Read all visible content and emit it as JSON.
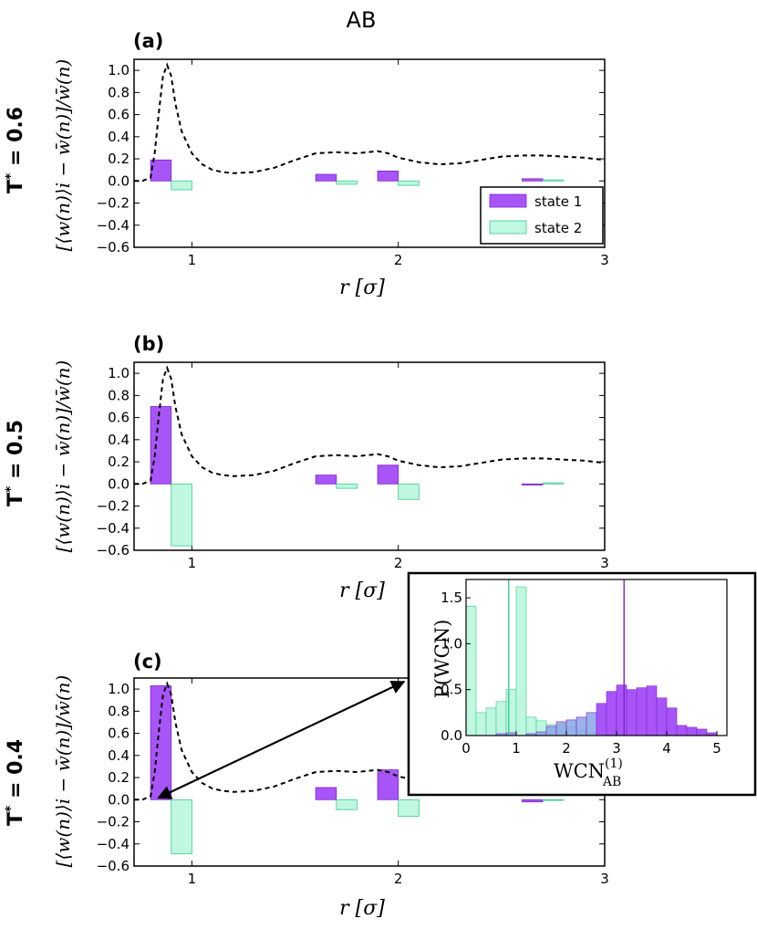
{
  "figure_title": "AB",
  "legend": {
    "state1": "state 1",
    "state2": "state 2"
  },
  "colors": {
    "state1": "#a855f7",
    "state1_edge": "#7e22ce",
    "state2": "#bff7e0",
    "state2_edge": "#3cc98e",
    "overlap": "#8aa6e6"
  },
  "panels": [
    {
      "letter": "(a)",
      "temp_label": "T* = 0.6",
      "temp_letter": "T",
      "temp_star": "*",
      "temp_value": " = 0.6",
      "ylabel": "[⟨w(n)⟩i − w̄(n)]/w̄(n)",
      "xlabel": "r [σ]",
      "show_legend": true
    },
    {
      "letter": "(b)",
      "temp_label": "T* = 0.5",
      "temp_letter": "T",
      "temp_star": "*",
      "temp_value": " = 0.5",
      "ylabel": "[⟨w(n)⟩i − w̄(n)]/w̄(n)",
      "xlabel": "r [σ]",
      "show_legend": false
    },
    {
      "letter": "(c)",
      "temp_label": "T* = 0.4",
      "temp_letter": "T",
      "temp_star": "*",
      "temp_value": " = 0.4",
      "ylabel": "[⟨w(n)⟩i − w̄(n)]/w̄(n)",
      "xlabel": "r [σ]",
      "show_legend": false
    }
  ],
  "inset": {
    "ylabel": "P(WCN)",
    "xlabel_main": "WCN",
    "xlabel_sup": "(1)",
    "xlabel_sub": "AB"
  },
  "chart_data": [
    {
      "type": "bar",
      "panel": "(a)",
      "title": "AB",
      "xlabel": "r [σ]",
      "ylabel": "[⟨w(n)⟩i − w̄(n)]/w̄(n)",
      "xlim": [
        0.72,
        3.0
      ],
      "ylim": [
        -0.6,
        1.1
      ],
      "xticks": [
        "1",
        "2",
        "3"
      ],
      "yticks": [
        "−0.6",
        "−0.4",
        "−0.2",
        "0.0",
        "0.2",
        "0.4",
        "0.6",
        "0.8",
        "1.0"
      ],
      "series": [
        {
          "name": "state 1",
          "bars": [
            {
              "x": 0.8,
              "v": 0.19
            },
            {
              "x": 1.6,
              "v": 0.06
            },
            {
              "x": 1.9,
              "v": 0.09
            },
            {
              "x": 2.6,
              "v": 0.02
            }
          ]
        },
        {
          "name": "state 2",
          "bars": [
            {
              "x": 0.9,
              "v": -0.08
            },
            {
              "x": 1.7,
              "v": -0.03
            },
            {
              "x": 2.0,
              "v": -0.04
            },
            {
              "x": 2.7,
              "v": 0.01
            }
          ]
        }
      ],
      "reference_curve": {
        "style": "dashed",
        "x": [
          0.72,
          0.76,
          0.8,
          0.82,
          0.84,
          0.86,
          0.88,
          0.9,
          0.92,
          0.95,
          1.0,
          1.05,
          1.1,
          1.15,
          1.2,
          1.3,
          1.4,
          1.5,
          1.6,
          1.7,
          1.8,
          1.9,
          1.95,
          2.0,
          2.1,
          2.2,
          2.3,
          2.4,
          2.5,
          2.6,
          2.7,
          2.8,
          2.9,
          3.0
        ],
        "y": [
          0.0,
          0.0,
          0.03,
          0.25,
          0.62,
          0.95,
          1.05,
          0.95,
          0.7,
          0.45,
          0.25,
          0.15,
          0.1,
          0.08,
          0.07,
          0.08,
          0.12,
          0.19,
          0.25,
          0.26,
          0.25,
          0.27,
          0.25,
          0.21,
          0.17,
          0.15,
          0.16,
          0.19,
          0.22,
          0.23,
          0.23,
          0.22,
          0.21,
          0.19
        ]
      },
      "legend": {
        "entries": [
          "state 1",
          "state 2"
        ],
        "position": "lower-right"
      }
    },
    {
      "type": "bar",
      "panel": "(b)",
      "xlabel": "r [σ]",
      "ylabel": "[⟨w(n)⟩i − w̄(n)]/w̄(n)",
      "xlim": [
        0.72,
        3.0
      ],
      "ylim": [
        -0.6,
        1.1
      ],
      "xticks": [
        "1",
        "2",
        "3"
      ],
      "yticks": [
        "−0.6",
        "−0.4",
        "−0.2",
        "0.0",
        "0.2",
        "0.4",
        "0.6",
        "0.8",
        "1.0"
      ],
      "series": [
        {
          "name": "state 1",
          "bars": [
            {
              "x": 0.8,
              "v": 0.7
            },
            {
              "x": 1.6,
              "v": 0.08
            },
            {
              "x": 1.9,
              "v": 0.17
            },
            {
              "x": 2.6,
              "v": -0.01
            }
          ]
        },
        {
          "name": "state 2",
          "bars": [
            {
              "x": 0.9,
              "v": -0.56
            },
            {
              "x": 1.7,
              "v": -0.04
            },
            {
              "x": 2.0,
              "v": -0.14
            },
            {
              "x": 2.7,
              "v": 0.01
            }
          ]
        }
      ],
      "reference_curve": {
        "style": "dashed",
        "same_as_panel": "(a)"
      }
    },
    {
      "type": "bar",
      "panel": "(c)",
      "xlabel": "r [σ]",
      "ylabel": "[⟨w(n)⟩i − w̄(n)]/w̄(n)",
      "xlim": [
        0.72,
        3.0
      ],
      "ylim": [
        -0.6,
        1.1
      ],
      "xticks": [
        "1",
        "2",
        "3"
      ],
      "yticks": [
        "−0.6",
        "−0.4",
        "−0.2",
        "0.0",
        "0.2",
        "0.4",
        "0.6",
        "0.8",
        "1.0"
      ],
      "series": [
        {
          "name": "state 1",
          "bars": [
            {
              "x": 0.8,
              "v": 1.03
            },
            {
              "x": 1.6,
              "v": 0.11
            },
            {
              "x": 1.9,
              "v": 0.27
            },
            {
              "x": 2.6,
              "v": -0.02
            }
          ]
        },
        {
          "name": "state 2",
          "bars": [
            {
              "x": 0.9,
              "v": -0.49
            },
            {
              "x": 1.7,
              "v": -0.09
            },
            {
              "x": 2.0,
              "v": -0.15
            },
            {
              "x": 2.7,
              "v": 0.0
            }
          ]
        }
      ],
      "reference_curve": {
        "style": "dashed",
        "same_as_panel": "(a)"
      },
      "annotation": {
        "type": "double-arrow",
        "from_data": [
          0.82,
          0.0
        ],
        "to": "inset"
      }
    },
    {
      "type": "histogram",
      "panel": "inset",
      "xlabel": "WCN(1)AB",
      "ylabel": "P(WCN)",
      "xlim": [
        0,
        5.2
      ],
      "ylim": [
        0,
        1.7
      ],
      "xticks": [
        "0",
        "1",
        "2",
        "3",
        "4",
        "5"
      ],
      "yticks": [
        "0.0",
        "0.5",
        "1.0",
        "1.5"
      ],
      "bin_width": 0.2,
      "series": [
        {
          "name": "state 1",
          "bin_starts": [
            0.6,
            0.8,
            1.2,
            1.4,
            1.6,
            1.8,
            2.0,
            2.2,
            2.4,
            2.6,
            2.8,
            3.0,
            3.2,
            3.4,
            3.6,
            3.8,
            4.0,
            4.2,
            4.4,
            4.6,
            4.8
          ],
          "values": [
            0.02,
            0.03,
            0.02,
            0.04,
            0.1,
            0.15,
            0.17,
            0.2,
            0.25,
            0.35,
            0.48,
            0.55,
            0.5,
            0.52,
            0.54,
            0.41,
            0.3,
            0.11,
            0.09,
            0.07,
            0.03
          ]
        },
        {
          "name": "state 2",
          "bin_starts": [
            0.0,
            0.2,
            0.4,
            0.6,
            0.8,
            1.0,
            1.2,
            1.4,
            1.6,
            1.8,
            2.0,
            2.2,
            2.4
          ],
          "values": [
            1.41,
            0.25,
            0.3,
            0.37,
            0.5,
            1.62,
            0.2,
            0.16,
            0.12,
            0.12,
            0.1,
            0.06,
            0.03
          ]
        }
      ],
      "vertical_lines": [
        {
          "series": "state 2",
          "x": 0.85
        },
        {
          "series": "state 1",
          "x": 3.15
        }
      ]
    }
  ]
}
